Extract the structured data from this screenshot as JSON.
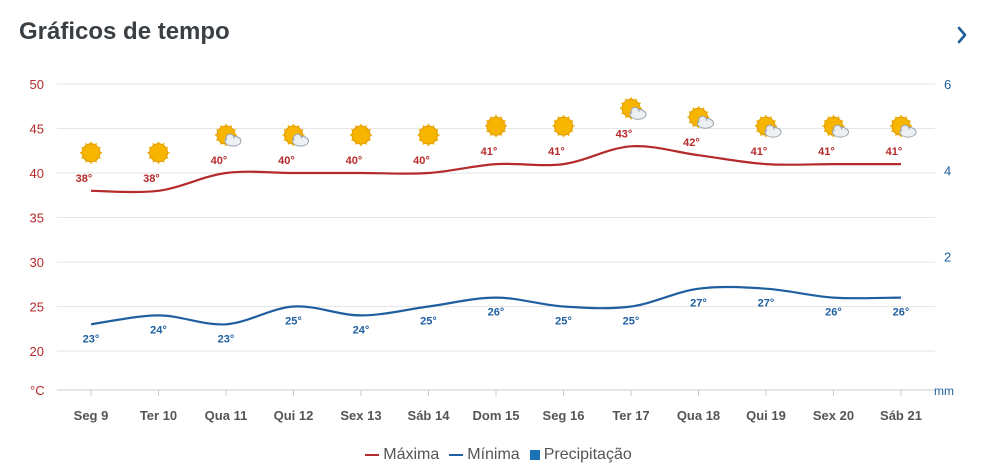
{
  "header": {
    "title": "Gráficos de tempo"
  },
  "colors": {
    "max": "#b52a2a",
    "min": "#1f5fa0",
    "precip": "#1a73b5",
    "grid": "#e6e6e6",
    "tempAxis": "#b52a2a",
    "precipAxis": "#1f5fa0"
  },
  "chart_data": {
    "type": "line",
    "categories": [
      "Seg 9",
      "Ter 10",
      "Qua 11",
      "Qui 12",
      "Sex 13",
      "Sáb 14",
      "Dom 15",
      "Seg 16",
      "Ter 17",
      "Qua 18",
      "Qui 19",
      "Sex 20",
      "Sáb 21"
    ],
    "series": [
      {
        "name": "Máxima",
        "values": [
          38,
          38,
          40,
          40,
          40,
          40,
          41,
          41,
          43,
          42,
          41,
          41,
          41
        ],
        "color": "#b52a2a"
      },
      {
        "name": "Mínima",
        "values": [
          23,
          24,
          23,
          25,
          24,
          25,
          26,
          25,
          25,
          27,
          27,
          26,
          26
        ],
        "color": "#1f5fa0"
      },
      {
        "name": "Precipitação",
        "values": [
          0,
          0,
          0,
          0,
          0,
          0,
          0,
          0,
          0,
          0,
          0,
          0,
          0
        ],
        "color": "#1a73b5"
      }
    ],
    "data_labels": {
      "max": [
        "38°",
        "38°",
        "40°",
        "40°",
        "40°",
        "40°",
        "41°",
        "41°",
        "43°",
        "42°",
        "41°",
        "41°",
        "41°"
      ],
      "min": [
        "23°",
        "24°",
        "23°",
        "25°",
        "24°",
        "25°",
        "26°",
        "25°",
        "25°",
        "27°",
        "27°",
        "26°",
        "26°"
      ]
    },
    "weather_icons": [
      "sun-icon",
      "sun-icon",
      "partly-cloudy-icon",
      "partly-cloudy-icon",
      "sun-icon",
      "sun-icon",
      "sun-icon",
      "sun-icon",
      "partly-cloudy-icon",
      "partly-cloudy-icon",
      "partly-cloudy-icon",
      "partly-cloudy-icon",
      "partly-cloudy-icon"
    ],
    "y_left": {
      "ticks": [
        "50",
        "45",
        "40",
        "35",
        "30",
        "25",
        "20"
      ],
      "unit": "°C",
      "ylim": [
        20,
        50
      ]
    },
    "y_right": {
      "ticks": [
        "6",
        "4",
        "2"
      ],
      "unit": "mm",
      "ylim": [
        0,
        6
      ]
    },
    "grid": true,
    "legend": {
      "position": "bottom",
      "items": [
        "Máxima",
        "Mínima",
        "Precipitação"
      ]
    }
  }
}
